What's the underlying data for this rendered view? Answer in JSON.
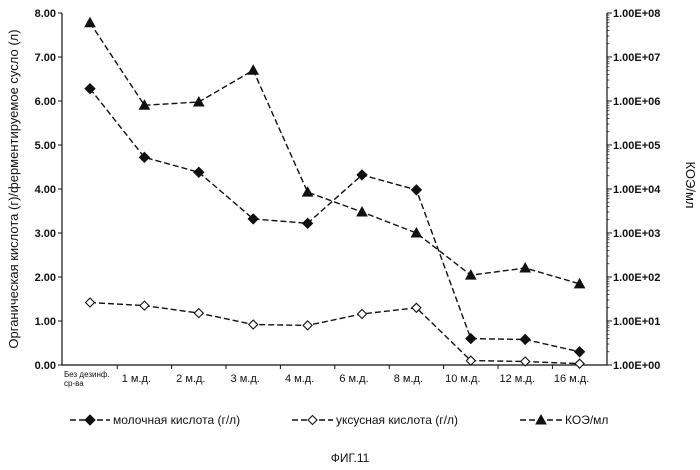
{
  "chart_data": {
    "type": "line",
    "title": "",
    "categories": [
      "Без дезинф. ср-ва",
      "1 м.д.",
      "2 м.д.",
      "3 м.д.",
      "4 м.д.",
      "6 м.д.",
      "8 м.д.",
      "10 м.д.",
      "12 м.д.",
      "16 м.д."
    ],
    "ylabel": "Органическая кислота (г)/ферментируемое сусло (л)",
    "ylabel_right": "КОЭ/мл",
    "ylim": [
      0,
      8
    ],
    "y_ticks": [
      "0.00",
      "1.00",
      "2.00",
      "3.00",
      "4.00",
      "5.00",
      "6.00",
      "7.00",
      "8.00"
    ],
    "y2_scale": "log",
    "y2lim": [
      1,
      100000000
    ],
    "y2_ticks": [
      "1.00E+00",
      "1.00E+01",
      "1.00E+02",
      "1.00E+03",
      "1.00E+04",
      "1.00E+05",
      "1.00E+06",
      "1.00E+07",
      "1.00E+08"
    ],
    "legend_position": "bottom",
    "grid": false,
    "series": [
      {
        "name": "молочная кислота (г/л)",
        "axis": "left",
        "marker": "filled-diamond",
        "values": [
          6.28,
          4.72,
          4.38,
          3.32,
          3.22,
          4.32,
          3.98,
          0.6,
          0.58,
          0.3
        ]
      },
      {
        "name": "уксусная кислота (г/л)",
        "axis": "left",
        "marker": "open-diamond",
        "values": [
          1.42,
          1.35,
          1.18,
          0.92,
          0.9,
          1.16,
          1.3,
          0.1,
          0.08,
          0.03
        ]
      },
      {
        "name": "КОЭ/мл",
        "axis": "right",
        "marker": "filled-triangle",
        "values": [
          60000000,
          800000,
          950000,
          5000000,
          8500,
          3000,
          1000,
          110,
          160,
          70
        ]
      }
    ],
    "caption": "ФИГ.11"
  }
}
